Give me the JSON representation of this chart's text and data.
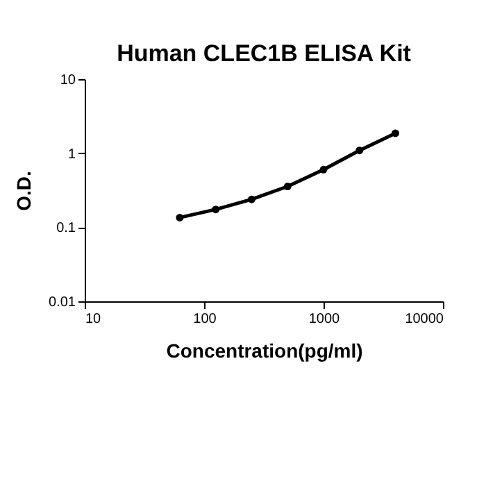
{
  "chart_data": {
    "type": "line",
    "title": "Human CLEC1B ELISA Kit",
    "xlabel": "Concentration(pg/ml)",
    "ylabel": "O.D.",
    "x": [
      62.5,
      125,
      250,
      500,
      1000,
      2000,
      4000
    ],
    "series": [
      {
        "color": "#000000",
        "values": [
          0.135,
          0.174,
          0.238,
          0.356,
          0.6,
          1.09,
          1.86
        ]
      }
    ],
    "log": "xy",
    "xlim": [
      10,
      10000
    ],
    "xticks": [
      10,
      100,
      1000,
      10000
    ],
    "ylim": [
      0.01,
      10
    ],
    "yticks": [
      0.01,
      0.1,
      1,
      10
    ],
    "grid": false,
    "marker": "circle",
    "line_style": "solid"
  }
}
